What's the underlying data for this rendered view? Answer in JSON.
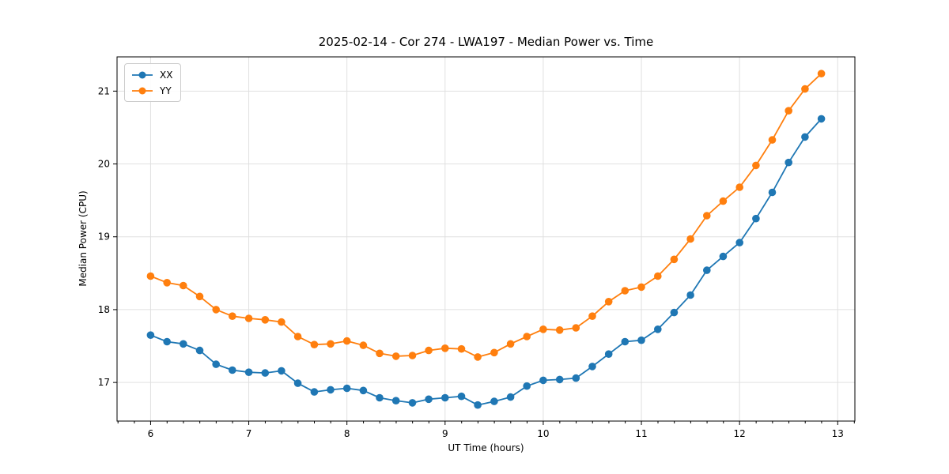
{
  "chart_data": {
    "type": "line",
    "title": "2025-02-14 - Cor 274 - LWA197 - Median Power vs. Time",
    "xlabel": "UT Time (hours)",
    "ylabel": "Median Power (CPU)",
    "xlim": [
      5.658,
      13.175
    ],
    "ylim": [
      16.47,
      21.47
    ],
    "xticks": [
      6,
      7,
      8,
      9,
      10,
      11,
      12,
      13
    ],
    "yticks": [
      17,
      18,
      19,
      20,
      21
    ],
    "x_minor_step": 0.1667,
    "grid": true,
    "grid_color": "#e0e0e0",
    "legend_position": "upper-left",
    "x": [
      6.0,
      6.167,
      6.333,
      6.5,
      6.667,
      6.833,
      7.0,
      7.167,
      7.333,
      7.5,
      7.667,
      7.833,
      8.0,
      8.167,
      8.333,
      8.5,
      8.667,
      8.833,
      9.0,
      9.167,
      9.333,
      9.5,
      9.667,
      9.833,
      10.0,
      10.167,
      10.333,
      10.5,
      10.667,
      10.833,
      11.0,
      11.167,
      11.333,
      11.5,
      11.667,
      11.833,
      12.0,
      12.167,
      12.333,
      12.5,
      12.667,
      12.833
    ],
    "series": [
      {
        "name": "XX",
        "color": "#1f77b4",
        "values": [
          17.65,
          17.56,
          17.53,
          17.44,
          17.25,
          17.17,
          17.14,
          17.13,
          17.16,
          16.99,
          16.87,
          16.9,
          16.92,
          16.89,
          16.79,
          16.75,
          16.72,
          16.77,
          16.79,
          16.81,
          16.69,
          16.74,
          16.8,
          16.95,
          17.03,
          17.04,
          17.06,
          17.22,
          17.39,
          17.56,
          17.58,
          17.73,
          17.96,
          18.2,
          18.54,
          18.73,
          18.92,
          19.25,
          19.61,
          20.02,
          20.37,
          20.62
        ]
      },
      {
        "name": "YY",
        "color": "#ff7f0e",
        "values": [
          18.46,
          18.37,
          18.33,
          18.18,
          18.0,
          17.91,
          17.88,
          17.86,
          17.83,
          17.63,
          17.52,
          17.53,
          17.57,
          17.51,
          17.4,
          17.36,
          17.37,
          17.44,
          17.47,
          17.46,
          17.35,
          17.41,
          17.53,
          17.63,
          17.73,
          17.72,
          17.75,
          17.91,
          18.11,
          18.26,
          18.31,
          18.46,
          18.69,
          18.97,
          19.29,
          19.49,
          19.68,
          19.98,
          20.33,
          20.73,
          21.03,
          21.24
        ]
      }
    ]
  }
}
